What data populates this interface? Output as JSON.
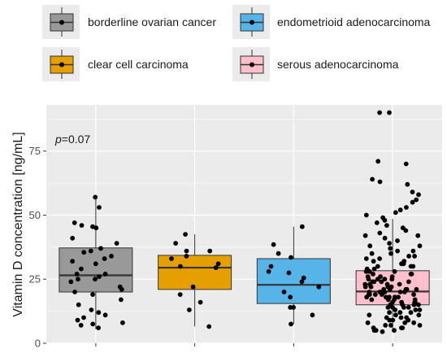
{
  "chart_data": {
    "type": "box",
    "ylabel": "Vitamin D concentration [ng/mL]",
    "xlabel": "",
    "ylim": [
      0,
      93
    ],
    "yticks": [
      0,
      25,
      50,
      75
    ],
    "annotation": {
      "prefix": "p",
      "text": "=0.07"
    },
    "legend": {
      "position": "top"
    },
    "grid": true,
    "groups": [
      {
        "name": "borderline ovarian cancer",
        "color": "#999999",
        "box": {
          "q1": 20,
          "median": 26.5,
          "q3": 37.2,
          "whisker_low": 5.5,
          "whisker_high": 57
        },
        "points": [
          57,
          53,
          47,
          46,
          45.5,
          45,
          41,
          39,
          37,
          36,
          35.5,
          34,
          33,
          32,
          31,
          29,
          27,
          27,
          26,
          25,
          25,
          24,
          22,
          21,
          20,
          19,
          17,
          15,
          13,
          12,
          11,
          10,
          9,
          8,
          7.5,
          7,
          6
        ]
      },
      {
        "name": "clear cell carcinoma",
        "color": "#E69F00",
        "box": {
          "q1": 21,
          "median": 29.5,
          "q3": 34.3,
          "whisker_low": 6.5,
          "whisker_high": 42.5
        },
        "points": [
          42.5,
          39,
          36,
          36,
          34,
          33,
          31,
          30,
          29.5,
          22,
          19,
          16,
          13,
          6.5
        ]
      },
      {
        "name": "endometrioid adenocarcinoma",
        "color": "#56B4E9",
        "box": {
          "q1": 15.5,
          "median": 22.8,
          "q3": 33,
          "whisker_low": 7.5,
          "whisker_high": 45.5
        },
        "points": [
          45.5,
          38.5,
          35,
          33.5,
          30,
          28,
          27.5,
          25.5,
          24,
          22,
          20,
          18,
          14,
          14,
          11,
          7.5
        ]
      },
      {
        "name": "serous adenocarcinoma",
        "color": "#FFC0CB",
        "box": {
          "q1": 15,
          "median": 20.2,
          "q3": 28.3,
          "whisker_low": 4.5,
          "whisker_high": 48.5
        },
        "points": [
          90,
          90,
          71,
          70,
          64,
          63,
          62,
          59,
          58,
          56,
          55,
          53,
          52,
          51,
          50,
          49,
          48,
          47,
          46,
          45,
          44,
          43,
          42,
          42,
          41,
          40,
          39,
          38,
          38,
          37,
          36,
          36,
          35,
          35,
          34,
          34,
          33,
          33,
          32,
          32,
          31,
          31,
          30,
          30,
          30,
          29,
          29,
          28,
          28,
          28,
          27,
          27,
          27,
          26,
          26,
          26,
          25,
          25,
          25,
          25,
          24,
          24,
          24,
          24,
          23,
          23,
          23,
          23,
          22,
          22,
          22,
          22,
          21,
          21,
          21,
          21,
          21,
          20,
          20,
          20,
          20,
          20,
          19,
          19,
          19,
          19,
          19,
          18,
          18,
          18,
          18,
          18,
          17,
          17,
          17,
          17,
          16,
          16,
          16,
          16,
          15,
          15,
          15,
          15,
          14,
          14,
          14,
          14,
          13,
          13,
          13,
          12,
          12,
          12,
          11,
          11,
          11,
          10,
          10,
          10,
          9,
          9,
          9,
          8,
          8,
          8,
          7,
          7,
          7,
          6,
          6,
          6,
          5,
          5,
          5,
          4.5
        ]
      }
    ]
  }
}
